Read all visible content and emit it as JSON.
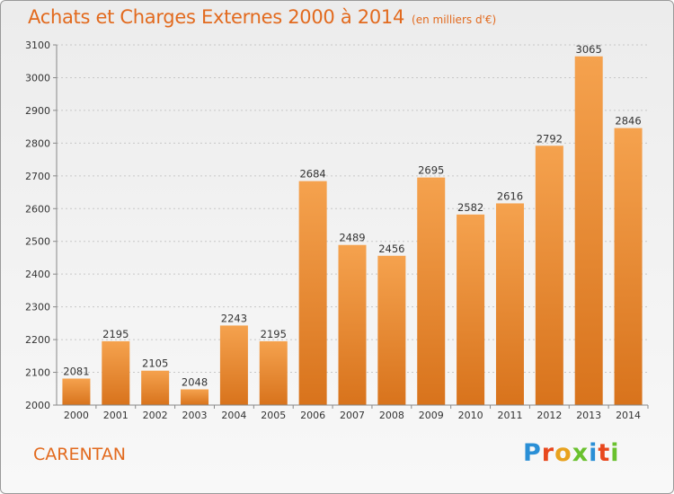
{
  "header": {
    "title": "Achats et Charges Externes 2000 à 2014",
    "subtitle": "(en milliers d'€)"
  },
  "footer": {
    "city": "CARENTAN",
    "logo": "Proxiti"
  },
  "colors": {
    "bar_top": "#f5a24e",
    "bar_bottom": "#d8731c",
    "title": "#e26a1e",
    "logo": [
      "#2a8fd6",
      "#e8481e",
      "#e8a21e",
      "#6ac12e",
      "#2a8fd6",
      "#e8481e",
      "#6ac12e"
    ]
  },
  "chart_data": {
    "type": "bar",
    "title": "Achats et Charges Externes 2000 à 2014",
    "ylabel": "",
    "xlabel": "",
    "categories": [
      "2000",
      "2001",
      "2002",
      "2003",
      "2004",
      "2005",
      "2006",
      "2007",
      "2008",
      "2009",
      "2010",
      "2011",
      "2012",
      "2013",
      "2014"
    ],
    "values": [
      2081,
      2195,
      2105,
      2048,
      2243,
      2195,
      2684,
      2489,
      2456,
      2695,
      2582,
      2616,
      2792,
      3065,
      2846
    ],
    "ylim": [
      2000,
      3100
    ],
    "yticks": [
      2000,
      2100,
      2200,
      2300,
      2400,
      2500,
      2600,
      2700,
      2800,
      2900,
      3000,
      3100
    ],
    "grid": true
  }
}
